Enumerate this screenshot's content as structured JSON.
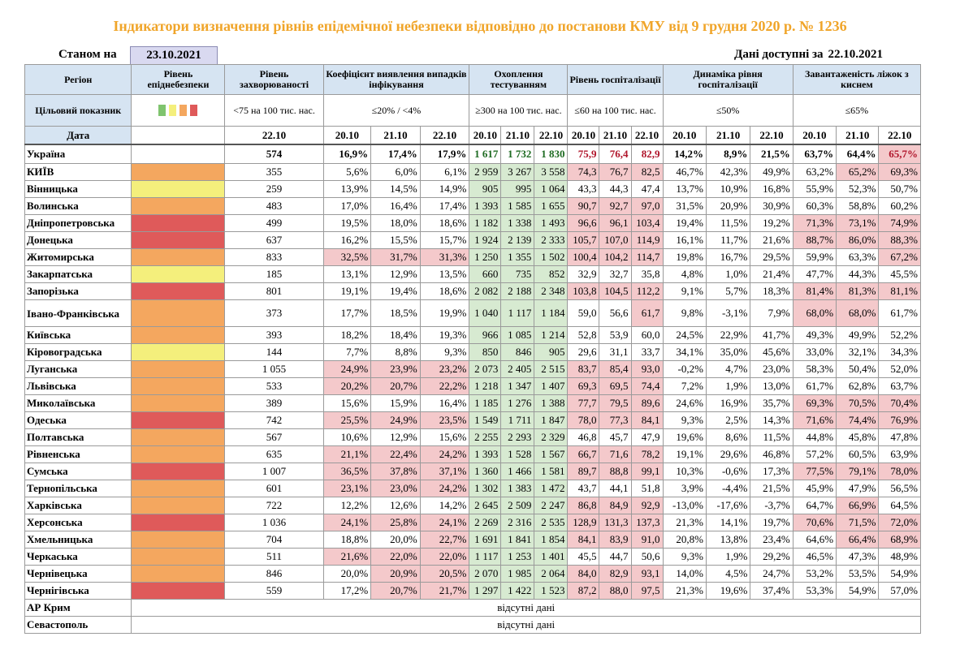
{
  "title": "Індикатори визначення рівнів епідемічної небезпеки відповідно до постанови КМУ від 9 грудня 2020 р. № 1236",
  "as_of_label": "Станом на",
  "as_of_date": "23.10.2021",
  "available_label": "Дані доступні за",
  "available_date": "22.10.2021",
  "headers": {
    "region": "Регіон",
    "level": "Рівень епіднебезпеки",
    "incidence": "Рівень захворюваності",
    "detection": "Коефіцієнт виявлення випадків інфікування",
    "testing": "Охоплення тестуванням",
    "hosp": "Рівень госпіталізації",
    "hosp_dyn": "Динаміка рівня госпіталізації",
    "oxygen": "Завантаженість ліжок з киснем"
  },
  "targets": {
    "label": "Цільовий показник",
    "incidence": "<75 на 100 тис. нас.",
    "detection": "≤20% / <4%",
    "testing": "≥300 на 100 тис. нас.",
    "hosp": "≤60 на 100 тис. нас.",
    "hosp_dyn": "≤50%",
    "oxygen": "≤65%"
  },
  "level_colors": {
    "green": "#7fc46e",
    "yellow": "#f4ef7c",
    "orange": "#f4a75f",
    "red": "#df5a5a"
  },
  "date_label": "Дата",
  "dates": {
    "incidence": "22.10",
    "triple": [
      "20.10",
      "21.10",
      "22.10"
    ]
  },
  "total": {
    "name": "Україна",
    "incidence": "574",
    "detection": [
      "16,9%",
      "17,4%",
      "17,9%"
    ],
    "testing": [
      "1 617",
      "1 732",
      "1 830"
    ],
    "hosp": [
      "75,9",
      "76,4",
      "82,9"
    ],
    "hosp_dyn": [
      "14,2%",
      "8,9%",
      "21,5%"
    ],
    "oxygen": [
      "63,7%",
      "64,4%",
      "65,7%"
    ]
  },
  "regions": [
    {
      "name": "КИЇВ",
      "level": "orange",
      "incidence": "355",
      "detection": [
        "5,6%",
        "6,0%",
        "6,1%"
      ],
      "testing": [
        "2 959",
        "3 267",
        "3 558"
      ],
      "hosp": [
        "74,3",
        "76,7",
        "82,5"
      ],
      "hosp_dyn": [
        "46,7%",
        "42,3%",
        "49,9%"
      ],
      "oxygen": [
        "63,2%",
        "65,2%",
        "69,3%"
      ]
    },
    {
      "name": "Вінницька",
      "level": "yellow",
      "incidence": "259",
      "detection": [
        "13,9%",
        "14,5%",
        "14,9%"
      ],
      "testing": [
        "905",
        "995",
        "1 064"
      ],
      "hosp": [
        "43,3",
        "44,3",
        "47,4"
      ],
      "hosp_dyn": [
        "13,7%",
        "10,9%",
        "16,8%"
      ],
      "oxygen": [
        "55,9%",
        "52,3%",
        "50,7%"
      ]
    },
    {
      "name": "Волинська",
      "level": "orange",
      "incidence": "483",
      "detection": [
        "17,0%",
        "16,4%",
        "17,4%"
      ],
      "testing": [
        "1 393",
        "1 585",
        "1 655"
      ],
      "hosp": [
        "90,7",
        "92,7",
        "97,0"
      ],
      "hosp_dyn": [
        "31,5%",
        "20,9%",
        "30,9%"
      ],
      "oxygen": [
        "60,3%",
        "58,8%",
        "60,2%"
      ]
    },
    {
      "name": "Дніпропетровська",
      "level": "red",
      "incidence": "499",
      "detection": [
        "19,5%",
        "18,0%",
        "18,6%"
      ],
      "testing": [
        "1 182",
        "1 338",
        "1 493"
      ],
      "hosp": [
        "96,6",
        "96,1",
        "103,4"
      ],
      "hosp_dyn": [
        "19,4%",
        "11,5%",
        "19,2%"
      ],
      "oxygen": [
        "71,3%",
        "73,1%",
        "74,9%"
      ]
    },
    {
      "name": "Донецька",
      "level": "red",
      "incidence": "637",
      "detection": [
        "16,2%",
        "15,5%",
        "15,7%"
      ],
      "testing": [
        "1 924",
        "2 139",
        "2 333"
      ],
      "hosp": [
        "105,7",
        "107,0",
        "114,9"
      ],
      "hosp_dyn": [
        "16,1%",
        "11,7%",
        "21,6%"
      ],
      "oxygen": [
        "88,7%",
        "86,0%",
        "88,3%"
      ]
    },
    {
      "name": "Житомирська",
      "level": "orange",
      "incidence": "833",
      "detection": [
        "32,5%",
        "31,7%",
        "31,3%"
      ],
      "testing": [
        "1 250",
        "1 355",
        "1 502"
      ],
      "hosp": [
        "100,4",
        "104,2",
        "114,7"
      ],
      "hosp_dyn": [
        "19,8%",
        "16,7%",
        "29,5%"
      ],
      "oxygen": [
        "59,9%",
        "63,3%",
        "67,2%"
      ]
    },
    {
      "name": "Закарпатська",
      "level": "yellow",
      "incidence": "185",
      "detection": [
        "13,1%",
        "12,9%",
        "13,5%"
      ],
      "testing": [
        "660",
        "735",
        "852"
      ],
      "hosp": [
        "32,9",
        "32,7",
        "35,8"
      ],
      "hosp_dyn": [
        "4,8%",
        "1,0%",
        "21,4%"
      ],
      "oxygen": [
        "47,7%",
        "44,3%",
        "45,5%"
      ]
    },
    {
      "name": "Запорізька",
      "level": "red",
      "incidence": "801",
      "detection": [
        "19,1%",
        "19,4%",
        "18,6%"
      ],
      "testing": [
        "2 082",
        "2 188",
        "2 348"
      ],
      "hosp": [
        "103,8",
        "104,5",
        "112,2"
      ],
      "hosp_dyn": [
        "9,1%",
        "5,7%",
        "18,3%"
      ],
      "oxygen": [
        "81,4%",
        "81,3%",
        "81,1%"
      ]
    },
    {
      "name": "Івано-Франківська",
      "level": "orange",
      "incidence": "373",
      "detection": [
        "17,7%",
        "18,5%",
        "19,9%"
      ],
      "testing": [
        "1 040",
        "1 117",
        "1 184"
      ],
      "hosp": [
        "59,0",
        "56,6",
        "61,7"
      ],
      "hosp_dyn": [
        "9,8%",
        "-3,1%",
        "7,9%"
      ],
      "oxygen": [
        "68,0%",
        "68,0%",
        "61,7%"
      ]
    },
    {
      "name": "Київська",
      "level": "orange",
      "incidence": "393",
      "detection": [
        "18,2%",
        "18,4%",
        "19,3%"
      ],
      "testing": [
        "966",
        "1 085",
        "1 214"
      ],
      "hosp": [
        "52,8",
        "53,9",
        "60,0"
      ],
      "hosp_dyn": [
        "24,5%",
        "22,9%",
        "41,7%"
      ],
      "oxygen": [
        "49,3%",
        "49,9%",
        "52,2%"
      ]
    },
    {
      "name": "Кіровоградська",
      "level": "yellow",
      "incidence": "144",
      "detection": [
        "7,7%",
        "8,8%",
        "9,3%"
      ],
      "testing": [
        "850",
        "846",
        "905"
      ],
      "hosp": [
        "29,6",
        "31,1",
        "33,7"
      ],
      "hosp_dyn": [
        "34,1%",
        "35,0%",
        "45,6%"
      ],
      "oxygen": [
        "33,0%",
        "32,1%",
        "34,3%"
      ]
    },
    {
      "name": "Луганська",
      "level": "orange",
      "incidence": "1 055",
      "detection": [
        "24,9%",
        "23,9%",
        "23,2%"
      ],
      "testing": [
        "2 073",
        "2 405",
        "2 515"
      ],
      "hosp": [
        "83,7",
        "85,4",
        "93,0"
      ],
      "hosp_dyn": [
        "-0,2%",
        "4,7%",
        "23,0%"
      ],
      "oxygen": [
        "58,3%",
        "50,4%",
        "52,0%"
      ]
    },
    {
      "name": "Львівська",
      "level": "orange",
      "incidence": "533",
      "detection": [
        "20,2%",
        "20,7%",
        "22,2%"
      ],
      "testing": [
        "1 218",
        "1 347",
        "1 407"
      ],
      "hosp": [
        "69,3",
        "69,5",
        "74,4"
      ],
      "hosp_dyn": [
        "7,2%",
        "1,9%",
        "13,0%"
      ],
      "oxygen": [
        "61,7%",
        "62,8%",
        "63,7%"
      ]
    },
    {
      "name": "Миколаївська",
      "level": "orange",
      "incidence": "389",
      "detection": [
        "15,6%",
        "15,9%",
        "16,4%"
      ],
      "testing": [
        "1 185",
        "1 276",
        "1 388"
      ],
      "hosp": [
        "77,7",
        "79,5",
        "89,6"
      ],
      "hosp_dyn": [
        "24,6%",
        "16,9%",
        "35,7%"
      ],
      "oxygen": [
        "69,3%",
        "70,5%",
        "70,4%"
      ]
    },
    {
      "name": "Одеська",
      "level": "red",
      "incidence": "742",
      "detection": [
        "25,5%",
        "24,9%",
        "23,5%"
      ],
      "testing": [
        "1 549",
        "1 711",
        "1 847"
      ],
      "hosp": [
        "78,0",
        "77,3",
        "84,1"
      ],
      "hosp_dyn": [
        "9,3%",
        "2,5%",
        "14,3%"
      ],
      "oxygen": [
        "71,6%",
        "74,4%",
        "76,9%"
      ]
    },
    {
      "name": "Полтавська",
      "level": "orange",
      "incidence": "567",
      "detection": [
        "10,6%",
        "12,9%",
        "15,6%"
      ],
      "testing": [
        "2 255",
        "2 293",
        "2 329"
      ],
      "hosp": [
        "46,8",
        "45,7",
        "47,9"
      ],
      "hosp_dyn": [
        "19,6%",
        "8,6%",
        "11,5%"
      ],
      "oxygen": [
        "44,8%",
        "45,8%",
        "47,8%"
      ]
    },
    {
      "name": "Рівненська",
      "level": "orange",
      "incidence": "635",
      "detection": [
        "21,1%",
        "22,4%",
        "24,2%"
      ],
      "testing": [
        "1 393",
        "1 528",
        "1 567"
      ],
      "hosp": [
        "66,7",
        "71,6",
        "78,2"
      ],
      "hosp_dyn": [
        "19,1%",
        "29,6%",
        "46,8%"
      ],
      "oxygen": [
        "57,2%",
        "60,5%",
        "63,9%"
      ]
    },
    {
      "name": "Сумська",
      "level": "red",
      "incidence": "1 007",
      "detection": [
        "36,5%",
        "37,8%",
        "37,1%"
      ],
      "testing": [
        "1 360",
        "1 466",
        "1 581"
      ],
      "hosp": [
        "89,7",
        "88,8",
        "99,1"
      ],
      "hosp_dyn": [
        "10,3%",
        "-0,6%",
        "17,3%"
      ],
      "oxygen": [
        "77,5%",
        "79,1%",
        "78,0%"
      ]
    },
    {
      "name": "Тернопільська",
      "level": "orange",
      "incidence": "601",
      "detection": [
        "23,1%",
        "23,0%",
        "24,2%"
      ],
      "testing": [
        "1 302",
        "1 383",
        "1 472"
      ],
      "hosp": [
        "43,7",
        "44,1",
        "51,8"
      ],
      "hosp_dyn": [
        "3,9%",
        "-4,4%",
        "21,5%"
      ],
      "oxygen": [
        "45,9%",
        "47,9%",
        "56,5%"
      ]
    },
    {
      "name": "Харківська",
      "level": "orange",
      "incidence": "722",
      "detection": [
        "12,2%",
        "12,6%",
        "14,2%"
      ],
      "testing": [
        "2 645",
        "2 509",
        "2 247"
      ],
      "hosp": [
        "86,8",
        "84,9",
        "92,9"
      ],
      "hosp_dyn": [
        "-13,0%",
        "-17,6%",
        "-3,7%"
      ],
      "oxygen": [
        "64,7%",
        "66,9%",
        "64,5%"
      ]
    },
    {
      "name": "Херсонська",
      "level": "red",
      "incidence": "1 036",
      "detection": [
        "24,1%",
        "25,8%",
        "24,1%"
      ],
      "testing": [
        "2 269",
        "2 316",
        "2 535"
      ],
      "hosp": [
        "128,9",
        "131,3",
        "137,3"
      ],
      "hosp_dyn": [
        "21,3%",
        "14,1%",
        "19,7%"
      ],
      "oxygen": [
        "70,6%",
        "71,5%",
        "72,0%"
      ]
    },
    {
      "name": "Хмельницька",
      "level": "orange",
      "incidence": "704",
      "detection": [
        "18,8%",
        "20,0%",
        "22,7%"
      ],
      "testing": [
        "1 691",
        "1 841",
        "1 854"
      ],
      "hosp": [
        "84,1",
        "83,9",
        "91,0"
      ],
      "hosp_dyn": [
        "20,8%",
        "13,8%",
        "23,4%"
      ],
      "oxygen": [
        "64,6%",
        "66,4%",
        "68,9%"
      ]
    },
    {
      "name": "Черкаська",
      "level": "orange",
      "incidence": "511",
      "detection": [
        "21,6%",
        "22,0%",
        "22,0%"
      ],
      "testing": [
        "1 117",
        "1 253",
        "1 401"
      ],
      "hosp": [
        "45,5",
        "44,7",
        "50,6"
      ],
      "hosp_dyn": [
        "9,3%",
        "1,9%",
        "29,2%"
      ],
      "oxygen": [
        "46,5%",
        "47,3%",
        "48,9%"
      ]
    },
    {
      "name": "Чернівецька",
      "level": "orange",
      "incidence": "846",
      "detection": [
        "20,0%",
        "20,9%",
        "20,5%"
      ],
      "testing": [
        "2 070",
        "1 985",
        "2 064"
      ],
      "hosp": [
        "84,0",
        "82,9",
        "93,1"
      ],
      "hosp_dyn": [
        "14,0%",
        "4,5%",
        "24,7%"
      ],
      "oxygen": [
        "53,2%",
        "53,5%",
        "54,9%"
      ]
    },
    {
      "name": "Чернігівська",
      "level": "red",
      "incidence": "559",
      "detection": [
        "17,2%",
        "20,7%",
        "21,7%"
      ],
      "testing": [
        "1 297",
        "1 422",
        "1 523"
      ],
      "hosp": [
        "87,2",
        "88,0",
        "97,5"
      ],
      "hosp_dyn": [
        "21,3%",
        "19,6%",
        "37,4%"
      ],
      "oxygen": [
        "53,3%",
        "54,9%",
        "57,0%"
      ]
    }
  ],
  "absent_regions": [
    {
      "name": "АР Крим",
      "note": "відсутні дані"
    },
    {
      "name": "Севастополь",
      "note": "відсутні дані"
    }
  ]
}
